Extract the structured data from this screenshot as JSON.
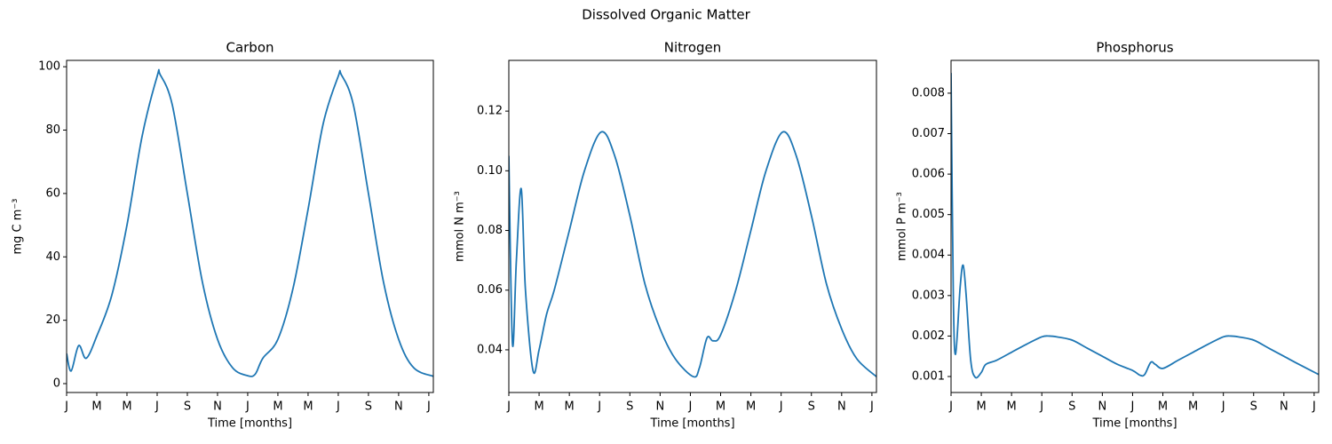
{
  "title": "Dissolved Organic Matter",
  "chart_data": [
    {
      "type": "line",
      "title": "Carbon",
      "xlabel": "Time [months]",
      "ylabel": "mg C m⁻³",
      "color": "#1f77b4",
      "x": [
        0,
        0.3,
        0.8,
        1.3,
        2,
        3,
        4,
        5,
        6,
        6.2,
        7,
        8,
        9,
        10,
        11,
        12,
        12.5,
        13,
        14,
        15,
        16,
        17,
        18,
        18.2,
        19,
        20,
        21,
        22,
        23,
        24.3
      ],
      "values": [
        9.5,
        4,
        12,
        8,
        15,
        28,
        50,
        78,
        97,
        97.5,
        88,
        60,
        32,
        14,
        5,
        2.5,
        3,
        8,
        14,
        30,
        55,
        82,
        97,
        97.5,
        88,
        60,
        32,
        14,
        5,
        2.3
      ],
      "xlim": [
        0,
        24.3
      ],
      "xticks": [
        {
          "value": 0,
          "label": "J"
        },
        {
          "value": 2,
          "label": "M"
        },
        {
          "value": 4,
          "label": "M"
        },
        {
          "value": 6,
          "label": "J"
        },
        {
          "value": 8,
          "label": "S"
        },
        {
          "value": 10,
          "label": "N"
        },
        {
          "value": 12,
          "label": "J"
        },
        {
          "value": 14,
          "label": "M"
        },
        {
          "value": 16,
          "label": "M"
        },
        {
          "value": 18,
          "label": "J"
        },
        {
          "value": 20,
          "label": "S"
        },
        {
          "value": 22,
          "label": "N"
        },
        {
          "value": 24,
          "label": "J"
        }
      ],
      "ylim": [
        -2.8,
        102
      ],
      "yticks": [
        0,
        20,
        40,
        60,
        80,
        100
      ]
    },
    {
      "type": "line",
      "title": "Nitrogen",
      "xlabel": "Time [months]",
      "ylabel": "mmol N m⁻³",
      "color": "#1f77b4",
      "x": [
        0,
        0.24,
        0.5,
        0.82,
        1.1,
        1.6,
        2,
        2.5,
        3,
        4,
        5,
        6.1,
        7,
        8,
        9,
        10,
        11,
        12.2,
        12.6,
        13.1,
        13.5,
        14,
        15,
        16,
        17,
        18.1,
        19,
        20,
        21,
        22,
        23,
        24.3
      ],
      "values": [
        0.105,
        0.042,
        0.07,
        0.094,
        0.06,
        0.033,
        0.04,
        0.052,
        0.06,
        0.08,
        0.1,
        0.113,
        0.105,
        0.085,
        0.062,
        0.047,
        0.037,
        0.031,
        0.034,
        0.044,
        0.043,
        0.045,
        0.06,
        0.08,
        0.1,
        0.113,
        0.105,
        0.085,
        0.062,
        0.047,
        0.037,
        0.031
      ],
      "xlim": [
        0,
        24.3
      ],
      "xticks": [
        {
          "value": 0,
          "label": "J"
        },
        {
          "value": 2,
          "label": "M"
        },
        {
          "value": 4,
          "label": "M"
        },
        {
          "value": 6,
          "label": "J"
        },
        {
          "value": 8,
          "label": "S"
        },
        {
          "value": 10,
          "label": "N"
        },
        {
          "value": 12,
          "label": "J"
        },
        {
          "value": 14,
          "label": "M"
        },
        {
          "value": 16,
          "label": "M"
        },
        {
          "value": 18,
          "label": "J"
        },
        {
          "value": 20,
          "label": "S"
        },
        {
          "value": 22,
          "label": "N"
        },
        {
          "value": 24,
          "label": "J"
        }
      ],
      "ylim": [
        0.0257,
        0.137
      ],
      "yticks": [
        0.04,
        0.06,
        0.08,
        {
          "value": 0.1,
          "label": "0.10"
        },
        0.12
      ]
    },
    {
      "type": "line",
      "title": "Phosphorus",
      "xlabel": "Time [months]",
      "ylabel": "mmol P m⁻³",
      "color": "#1f77b4",
      "x": [
        0,
        0.15,
        0.3,
        0.6,
        0.8,
        1.0,
        1.3,
        1.6,
        2,
        2.3,
        3,
        4,
        5,
        6,
        6.5,
        7,
        8,
        9,
        10,
        11,
        12,
        12.5,
        12.8,
        13.2,
        13.5,
        14,
        15,
        16,
        17,
        18,
        18.5,
        19,
        20,
        21,
        22,
        23,
        24.3
      ],
      "values": [
        0.0085,
        0.003,
        0.00155,
        0.0032,
        0.00375,
        0.003,
        0.0014,
        0.00098,
        0.0011,
        0.0013,
        0.0014,
        0.0016,
        0.0018,
        0.00198,
        0.002,
        0.00198,
        0.0019,
        0.0017,
        0.0015,
        0.0013,
        0.00115,
        0.00103,
        0.00105,
        0.00135,
        0.0013,
        0.0012,
        0.0014,
        0.0016,
        0.0018,
        0.00198,
        0.002,
        0.00198,
        0.0019,
        0.0017,
        0.0015,
        0.0013,
        0.00105
      ],
      "xlim": [
        0,
        24.3
      ],
      "xticks": [
        {
          "value": 0,
          "label": "J"
        },
        {
          "value": 2,
          "label": "M"
        },
        {
          "value": 4,
          "label": "M"
        },
        {
          "value": 6,
          "label": "J"
        },
        {
          "value": 8,
          "label": "S"
        },
        {
          "value": 10,
          "label": "N"
        },
        {
          "value": 12,
          "label": "J"
        },
        {
          "value": 14,
          "label": "M"
        },
        {
          "value": 16,
          "label": "M"
        },
        {
          "value": 18,
          "label": "J"
        },
        {
          "value": 20,
          "label": "S"
        },
        {
          "value": 22,
          "label": "N"
        },
        {
          "value": 24,
          "label": "J"
        }
      ],
      "ylim": [
        0.000605,
        0.00881
      ],
      "yticks": [
        0.001,
        0.002,
        0.003,
        0.004,
        0.005,
        0.006,
        0.007,
        0.008
      ]
    }
  ]
}
